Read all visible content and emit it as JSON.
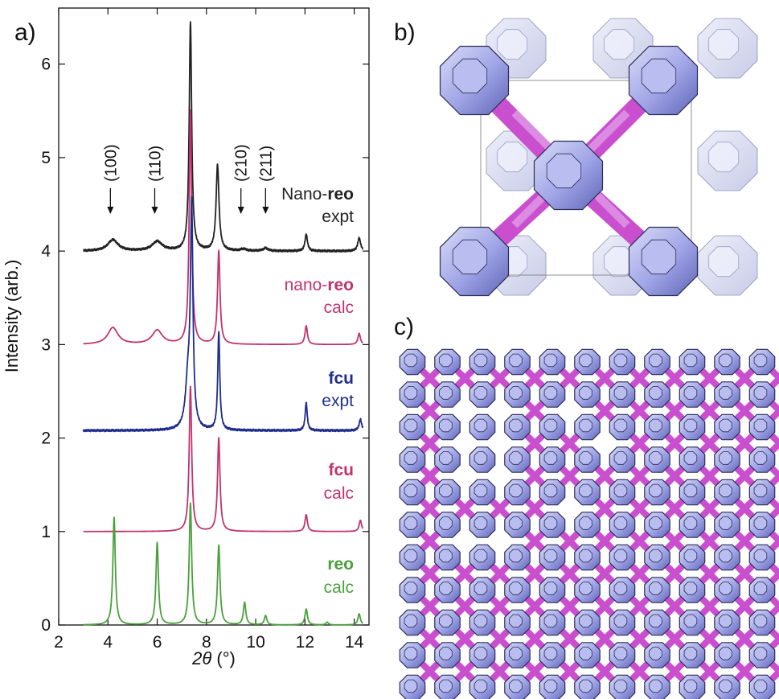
{
  "panels": {
    "a": "a)",
    "b": "b)",
    "c": "c)"
  },
  "chart_data": {
    "type": "line",
    "xlabel_symbol": "2θ",
    "xlabel_unit": " (°)",
    "ylabel": "Intensity (arb.)",
    "xlim": [
      2,
      14.6
    ],
    "ylim": [
      0,
      6.6
    ],
    "xticks": [
      2,
      4,
      6,
      8,
      10,
      12,
      14
    ],
    "yticks": [
      0,
      1,
      2,
      3,
      4,
      5,
      6
    ],
    "annotations": [
      {
        "text": "(100)",
        "x": 4.1
      },
      {
        "text": "(110)",
        "x": 5.9
      },
      {
        "text": "(210)",
        "x": 9.4
      },
      {
        "text": "(211)",
        "x": 10.4
      }
    ],
    "series": [
      {
        "label_pre": "Nano-",
        "label_bold": "reo",
        "label_post": "",
        "sublabel": "expt",
        "color": "#222222",
        "offset": 4.0,
        "noise": 0.012,
        "peaks": [
          [
            4.2,
            0.12,
            0.25
          ],
          [
            6.0,
            0.1,
            0.25
          ],
          [
            7.35,
            2.45,
            0.06
          ],
          [
            8.45,
            0.92,
            0.07
          ],
          [
            9.5,
            0.02,
            0.12
          ],
          [
            10.4,
            0.03,
            0.12
          ],
          [
            12.05,
            0.18,
            0.06
          ],
          [
            14.2,
            0.14,
            0.07
          ]
        ]
      },
      {
        "label_pre": "nano-",
        "label_bold": "reo",
        "label_post": "",
        "sublabel": "calc",
        "color": "#c2336e",
        "offset": 3.0,
        "noise": 0.0,
        "peaks": [
          [
            4.2,
            0.18,
            0.25
          ],
          [
            6.0,
            0.15,
            0.25
          ],
          [
            7.35,
            2.5,
            0.06
          ],
          [
            8.5,
            1.0,
            0.06
          ],
          [
            12.05,
            0.2,
            0.06
          ],
          [
            14.2,
            0.12,
            0.06
          ]
        ]
      },
      {
        "label_pre": "",
        "label_bold": "fcu",
        "label_post": "",
        "sublabel": "expt",
        "color": "#1f2d8c",
        "offset": 2.08,
        "noise": 0.012,
        "peaks": [
          [
            7.25,
            0.5,
            0.12
          ],
          [
            7.4,
            2.3,
            0.06
          ],
          [
            8.5,
            1.05,
            0.05
          ],
          [
            12.05,
            0.3,
            0.05
          ],
          [
            14.25,
            0.12,
            0.06
          ]
        ]
      },
      {
        "label_pre": "",
        "label_bold": "fcu",
        "label_post": "",
        "sublabel": "calc",
        "color": "#c2336e",
        "offset": 1.0,
        "noise": 0.0,
        "peaks": [
          [
            7.35,
            1.55,
            0.06
          ],
          [
            8.5,
            1.0,
            0.06
          ],
          [
            12.05,
            0.18,
            0.06
          ],
          [
            14.25,
            0.12,
            0.06
          ]
        ]
      },
      {
        "label_pre": "",
        "label_bold": "reo",
        "label_post": "",
        "sublabel": "calc",
        "color": "#4aa03c",
        "offset": 0.0,
        "noise": 0.0,
        "peaks": [
          [
            4.25,
            1.15,
            0.06
          ],
          [
            6.0,
            0.88,
            0.06
          ],
          [
            7.35,
            1.3,
            0.06
          ],
          [
            8.5,
            0.85,
            0.06
          ],
          [
            9.55,
            0.24,
            0.06
          ],
          [
            10.4,
            0.1,
            0.06
          ],
          [
            12.05,
            0.17,
            0.06
          ],
          [
            12.9,
            0.03,
            0.06
          ],
          [
            14.2,
            0.12,
            0.06
          ]
        ]
      }
    ]
  }
}
